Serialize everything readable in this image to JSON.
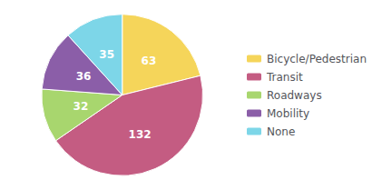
{
  "chart_data": {
    "type": "pie",
    "categories": [
      "Bicycle/Pedestrian",
      "Transit",
      "Roadways",
      "Mobility",
      "None"
    ],
    "values": [
      63,
      132,
      32,
      36,
      35
    ],
    "colors": [
      "#f5d55a",
      "#c45c82",
      "#a8d66e",
      "#8b5ea8",
      "#7dd6e8"
    ],
    "data_labels": true,
    "legend": "right"
  }
}
